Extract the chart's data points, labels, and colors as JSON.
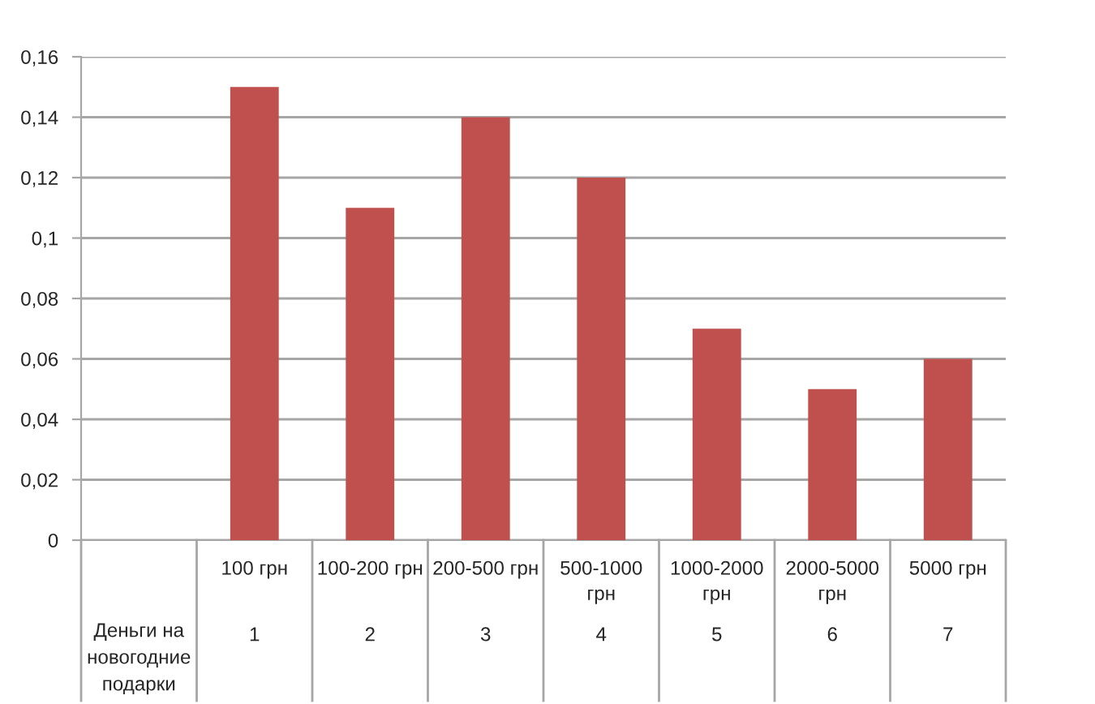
{
  "chart_data": {
    "type": "bar",
    "categories": [
      "100 грн",
      "100-200 грн",
      "200-500 грн",
      "500-1000 грн",
      "1000-2000 грн",
      "2000-5000 грн",
      "5000 грн"
    ],
    "values": [
      0.15,
      0.11,
      0.14,
      0.12,
      0.07,
      0.05,
      0.06
    ],
    "color": "#c0504d",
    "ylim": [
      0,
      0.16
    ],
    "yticks": [
      0,
      {
        "value": 0.02,
        "label": "0,02"
      },
      {
        "value": 0.04,
        "label": "0,04"
      },
      {
        "value": 0.06,
        "label": "0,06"
      },
      {
        "value": 0.08,
        "label": "0,08"
      },
      {
        "value": 0.1,
        "label": "0,1"
      },
      {
        "value": 0.12,
        "label": "0,12"
      },
      {
        "value": 0.14,
        "label": "0,14"
      },
      {
        "value": 0.16,
        "label": "0,16"
      }
    ],
    "grid": "y",
    "annotations": [
      "Деньги на новогодние подарки",
      "1",
      "2",
      "3",
      "4",
      "5",
      "6",
      "7"
    ]
  }
}
